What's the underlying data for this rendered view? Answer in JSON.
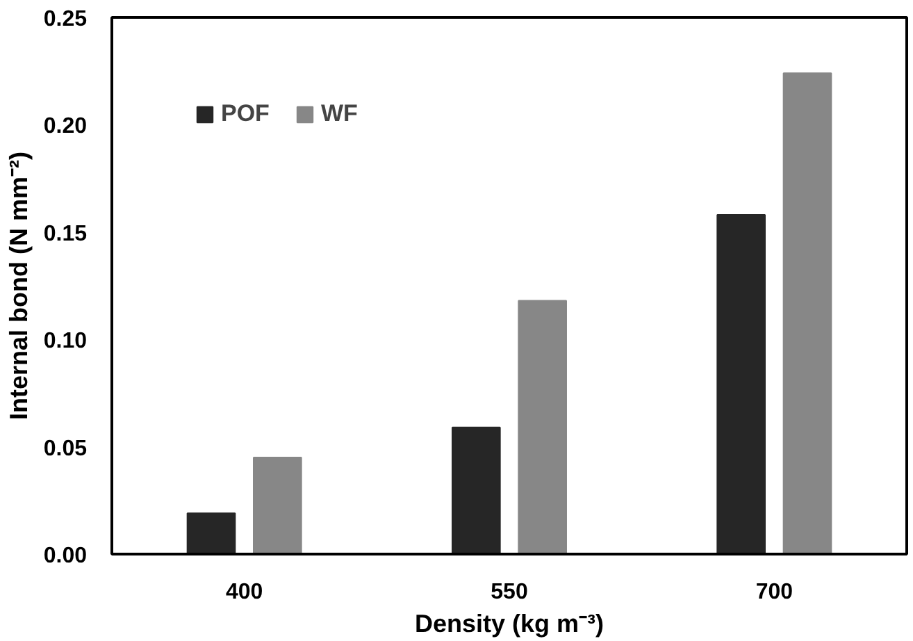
{
  "chart_data": {
    "type": "bar",
    "xlabel": "Density (kg m⁻³)",
    "ylabel": "Internal bond (N mm⁻²)",
    "categories": [
      "400",
      "550",
      "700"
    ],
    "series": [
      {
        "name": "POF",
        "color": "#262626",
        "values": [
          0.019,
          0.059,
          0.158
        ]
      },
      {
        "name": "WF",
        "color": "#878787",
        "values": [
          0.045,
          0.118,
          0.224
        ]
      }
    ],
    "ylim": [
      0,
      0.25
    ],
    "yticks": [
      {
        "value": 0,
        "label": "0.00"
      },
      {
        "value": 0.05,
        "label": "0.05"
      },
      {
        "value": 0.1,
        "label": "0.10"
      },
      {
        "value": 0.15,
        "label": "0.15"
      },
      {
        "value": 0.2,
        "label": "0.20"
      },
      {
        "value": 0.25,
        "label": "0.25"
      }
    ],
    "grid": false,
    "legend": "top left"
  }
}
